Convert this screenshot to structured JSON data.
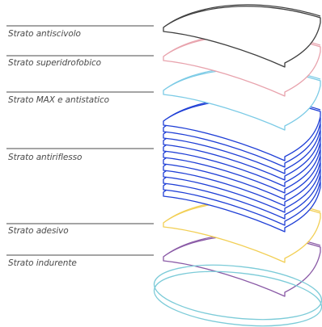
{
  "layers": [
    {
      "id": "antiscivolo",
      "label": "Strato antiscivolo",
      "color": "#3f3f3f"
    },
    {
      "id": "superidrofobico",
      "label": "Strato superidrofobico",
      "color": "#e8a3ad"
    },
    {
      "id": "max-antistatico",
      "label": "Strato MAX e antistatico",
      "color": "#7ccbe6"
    },
    {
      "id": "antiriflesso",
      "label": "Strato antiriflesso",
      "color": "#1f3fd6"
    },
    {
      "id": "adesivo",
      "label": "Strato adesivo",
      "color": "#f2cf55"
    },
    {
      "id": "indurente",
      "label": "Strato indurente",
      "color": "#8a5aa6"
    }
  ],
  "lens": {
    "color": "#7ccbd8"
  },
  "leader_color": "#4a4a4a"
}
